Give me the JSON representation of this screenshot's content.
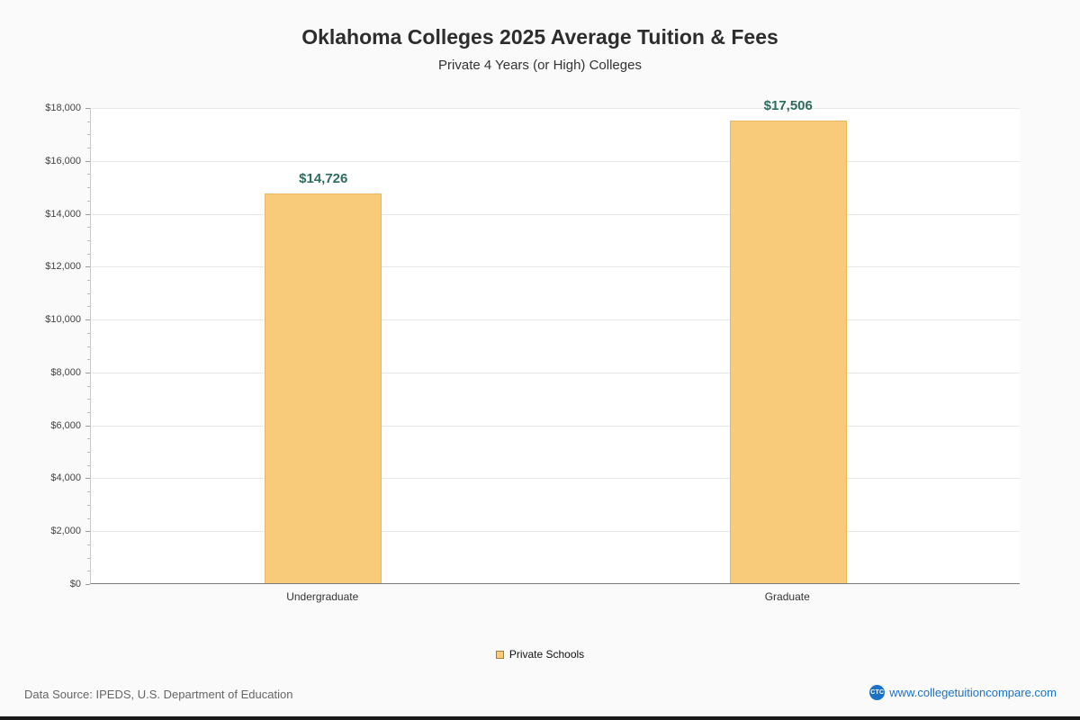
{
  "chart_data": {
    "type": "bar",
    "title": "Oklahoma Colleges 2025 Average Tuition & Fees",
    "subtitle": "Private 4 Years (or High)  Colleges",
    "categories": [
      "Undergraduate",
      "Graduate"
    ],
    "series": [
      {
        "name": "Private Schools",
        "values": [
          14726,
          17506
        ],
        "color": "#f7cb79"
      }
    ],
    "value_labels": [
      "$14,726",
      "$17,506"
    ],
    "ylim": [
      0,
      18000
    ],
    "ytick_step": 2000,
    "ytick_minor_step": 500,
    "ytick_labels": [
      "$0",
      "$2,000",
      "$4,000",
      "$6,000",
      "$8,000",
      "$10,000",
      "$12,000",
      "$14,000",
      "$16,000",
      "$18,000"
    ],
    "grid": true,
    "legend_position": "bottom"
  },
  "footer": {
    "source": "Data Source: IPEDS, U.S. Department of Education",
    "site": "www.collegetuitioncompare.com",
    "logo_text": "CTC"
  },
  "colors": {
    "bar_fill": "#f7cb79",
    "bar_border": "#eab95e",
    "value_label": "#2e6c5f",
    "link_blue": "#1a72c8",
    "page_background": "#fafafa",
    "plot_background": "#ffffff",
    "gridline": "#e8e8e8"
  }
}
